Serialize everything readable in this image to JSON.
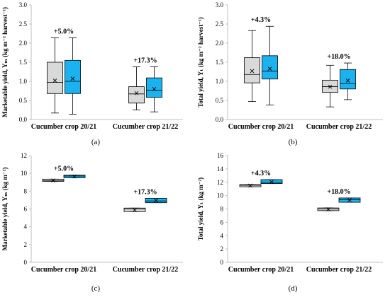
{
  "colors": {
    "crop_2021_box": "#d9d9d9",
    "crop_2122_box": "#1ab2ef",
    "axis": "#bfbfbf",
    "text": "#000000"
  },
  "chart_data": [
    {
      "type": "boxplot",
      "panel_label": "(a)",
      "ylabel": "Marketable yield, Yₘ (kg m⁻² harvest⁻¹)",
      "ylim": [
        0,
        3.0
      ],
      "yticks": [
        "0.0",
        "0.5",
        "1.0",
        "1.5",
        "2.0",
        "2.5",
        "3.0"
      ],
      "categories": [
        "Cucumber crop 20/21",
        "Cucumber crop 21/22"
      ],
      "annotations": [
        "+5.0%",
        "+17.3%"
      ],
      "grid": false,
      "boxes": [
        {
          "category": 0,
          "color": "#d9d9d9",
          "min": 0.17,
          "q1": 0.68,
          "median": 0.97,
          "q3": 1.5,
          "max": 2.14,
          "mean": 1.02
        },
        {
          "category": 0,
          "color": "#1ab2ef",
          "min": 0.14,
          "q1": 0.68,
          "median": 1.0,
          "q3": 1.55,
          "max": 2.14,
          "mean": 1.07
        },
        {
          "category": 1,
          "color": "#d9d9d9",
          "min": 0.25,
          "q1": 0.43,
          "median": 0.67,
          "q3": 0.86,
          "max": 1.38,
          "mean": 0.69
        },
        {
          "category": 1,
          "color": "#1ab2ef",
          "min": 0.2,
          "q1": 0.58,
          "median": 0.77,
          "q3": 1.09,
          "max": 1.38,
          "mean": 0.8
        }
      ]
    },
    {
      "type": "boxplot",
      "panel_label": "(b)",
      "ylabel": "Total yield, Yₜ (kg m⁻² harvest⁻¹)",
      "ylim": [
        0,
        3.0
      ],
      "yticks": [
        "0.0",
        "0.5",
        "1.0",
        "1.5",
        "2.0",
        "2.5",
        "3.0"
      ],
      "categories": [
        "Cucumber crop 20/21",
        "Cucumber crop 21/22"
      ],
      "annotations": [
        "+4.3%",
        "+18.0%"
      ],
      "grid": false,
      "boxes": [
        {
          "category": 0,
          "color": "#d9d9d9",
          "min": 0.47,
          "q1": 0.96,
          "median": 1.18,
          "q3": 1.62,
          "max": 2.33,
          "mean": 1.27
        },
        {
          "category": 0,
          "color": "#1ab2ef",
          "min": 0.38,
          "q1": 1.06,
          "median": 1.27,
          "q3": 1.67,
          "max": 2.44,
          "mean": 1.33
        },
        {
          "category": 1,
          "color": "#d9d9d9",
          "min": 0.33,
          "q1": 0.71,
          "median": 0.86,
          "q3": 1.03,
          "max": 1.42,
          "mean": 0.86
        },
        {
          "category": 1,
          "color": "#1ab2ef",
          "min": 0.52,
          "q1": 0.8,
          "median": 0.94,
          "q3": 1.31,
          "max": 1.48,
          "mean": 1.02
        }
      ]
    },
    {
      "type": "boxplot",
      "panel_label": "(c)",
      "ylabel": "Marketable yield, Yₘ (kg m⁻²)",
      "ylim": [
        0,
        12
      ],
      "yticks": [
        "0",
        "2",
        "4",
        "6",
        "8",
        "10",
        "12"
      ],
      "categories": [
        "Cucumber crop 20/21",
        "Cucumber crop 21/22"
      ],
      "annotations": [
        "+5.0%",
        "+17.3%"
      ],
      "grid": false,
      "boxes": [
        {
          "category": 0,
          "color": "#d9d9d9",
          "min": 9.1,
          "q1": 9.1,
          "median": 9.2,
          "q3": 9.35,
          "max": 9.35,
          "mean": 9.2
        },
        {
          "category": 0,
          "color": "#1ab2ef",
          "min": 9.5,
          "q1": 9.5,
          "median": 9.7,
          "q3": 9.8,
          "max": 9.8,
          "mean": 9.65
        },
        {
          "category": 1,
          "color": "#d9d9d9",
          "min": 5.7,
          "q1": 5.7,
          "median": 6.0,
          "q3": 6.1,
          "max": 6.1,
          "mean": 5.9
        },
        {
          "category": 1,
          "color": "#1ab2ef",
          "min": 6.7,
          "q1": 6.7,
          "median": 6.9,
          "q3": 7.2,
          "max": 7.2,
          "mean": 6.95
        }
      ]
    },
    {
      "type": "boxplot",
      "panel_label": "(d)",
      "ylabel": "Total yield, Yₜ (kg m⁻²)",
      "ylim": [
        0,
        16
      ],
      "yticks": [
        "0",
        "2",
        "4",
        "6",
        "8",
        "10",
        "12",
        "14",
        "16"
      ],
      "categories": [
        "Cucumber crop 20/21",
        "Cucumber crop 21/22"
      ],
      "annotations": [
        "+4.3%",
        "+18.0%"
      ],
      "grid": false,
      "boxes": [
        {
          "category": 0,
          "color": "#d9d9d9",
          "min": 11.35,
          "q1": 11.35,
          "median": 11.55,
          "q3": 11.65,
          "max": 11.65,
          "mean": 11.5
        },
        {
          "category": 0,
          "color": "#1ab2ef",
          "min": 11.8,
          "q1": 11.8,
          "median": 12.0,
          "q3": 12.4,
          "max": 12.4,
          "mean": 12.05
        },
        {
          "category": 1,
          "color": "#d9d9d9",
          "min": 7.75,
          "q1": 7.75,
          "median": 8.0,
          "q3": 8.15,
          "max": 8.15,
          "mean": 7.95
        },
        {
          "category": 1,
          "color": "#1ab2ef",
          "min": 9.0,
          "q1": 9.0,
          "median": 9.4,
          "q3": 9.65,
          "max": 9.65,
          "mean": 9.35
        }
      ]
    }
  ]
}
